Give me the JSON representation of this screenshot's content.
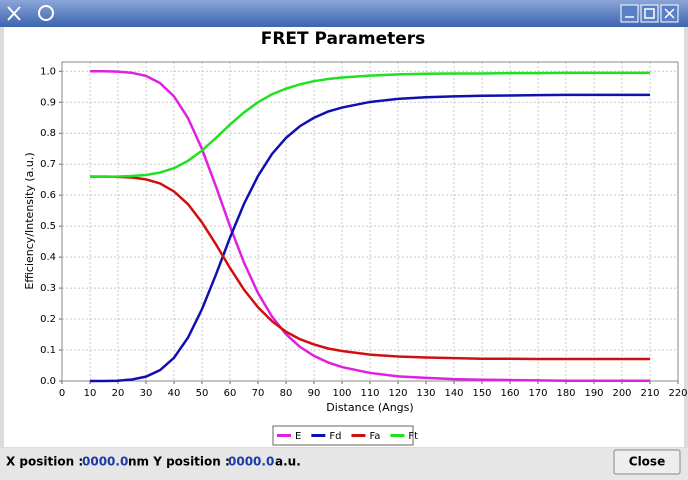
{
  "chart_data": {
    "type": "line",
    "title": "FRET Parameters",
    "x_label": "Distance (Angs)",
    "y_label": "Efficiency/Intensity (a.u.)",
    "x": [
      10,
      15,
      20,
      25,
      30,
      35,
      40,
      45,
      50,
      55,
      60,
      65,
      70,
      75,
      80,
      85,
      90,
      95,
      100,
      110,
      120,
      130,
      140,
      150,
      160,
      170,
      180,
      190,
      200,
      210
    ],
    "series": [
      {
        "name": "E",
        "color": "#e020e0",
        "values": [
          1.0,
          1.0,
          0.999,
          0.995,
          0.985,
          0.962,
          0.919,
          0.849,
          0.749,
          0.628,
          0.5,
          0.382,
          0.284,
          0.208,
          0.151,
          0.11,
          0.081,
          0.06,
          0.045,
          0.026,
          0.015,
          0.01,
          0.006,
          0.004,
          0.003,
          0.002,
          0.001,
          0.001,
          0.001,
          0.001
        ]
      },
      {
        "name": "Fd",
        "color": "#1010b0",
        "values": [
          0.0,
          0.0,
          0.001,
          0.005,
          0.014,
          0.035,
          0.075,
          0.14,
          0.232,
          0.344,
          0.463,
          0.572,
          0.662,
          0.733,
          0.785,
          0.823,
          0.85,
          0.87,
          0.883,
          0.901,
          0.911,
          0.916,
          0.919,
          0.921,
          0.922,
          0.923,
          0.924,
          0.924,
          0.924,
          0.924
        ]
      },
      {
        "name": "Fa",
        "color": "#d01010",
        "values": [
          0.66,
          0.66,
          0.659,
          0.657,
          0.651,
          0.638,
          0.612,
          0.571,
          0.512,
          0.441,
          0.365,
          0.295,
          0.238,
          0.193,
          0.159,
          0.135,
          0.118,
          0.105,
          0.097,
          0.085,
          0.079,
          0.076,
          0.074,
          0.072,
          0.072,
          0.071,
          0.071,
          0.071,
          0.071,
          0.071
        ]
      },
      {
        "name": "Ft",
        "color": "#20e020",
        "values": [
          0.66,
          0.66,
          0.66,
          0.662,
          0.665,
          0.673,
          0.687,
          0.711,
          0.744,
          0.785,
          0.828,
          0.867,
          0.9,
          0.926,
          0.944,
          0.958,
          0.968,
          0.975,
          0.98,
          0.986,
          0.99,
          0.992,
          0.993,
          0.993,
          0.994,
          0.994,
          0.995,
          0.995,
          0.995,
          0.995
        ]
      }
    ],
    "xlim": [
      0,
      220
    ],
    "xticks": [
      0,
      10,
      20,
      30,
      40,
      50,
      60,
      70,
      80,
      90,
      100,
      110,
      120,
      130,
      140,
      150,
      160,
      170,
      180,
      190,
      200,
      210,
      220
    ],
    "ylim": [
      0,
      1.03
    ],
    "yticks": [
      {
        "value": 0,
        "label": "0.0"
      },
      0.1,
      0.2,
      0.3,
      0.4,
      0.5,
      0.6,
      0.7,
      0.8,
      0.9,
      {
        "value": 1,
        "label": "1.0"
      }
    ],
    "grid": true,
    "legend": "bottom"
  },
  "status_bar": {
    "x_label": "X position :",
    "x_value": "0000.0",
    "middle": "nm Y position :",
    "y_value": "0000.0",
    "unit": "a.u.",
    "button": "Close"
  }
}
